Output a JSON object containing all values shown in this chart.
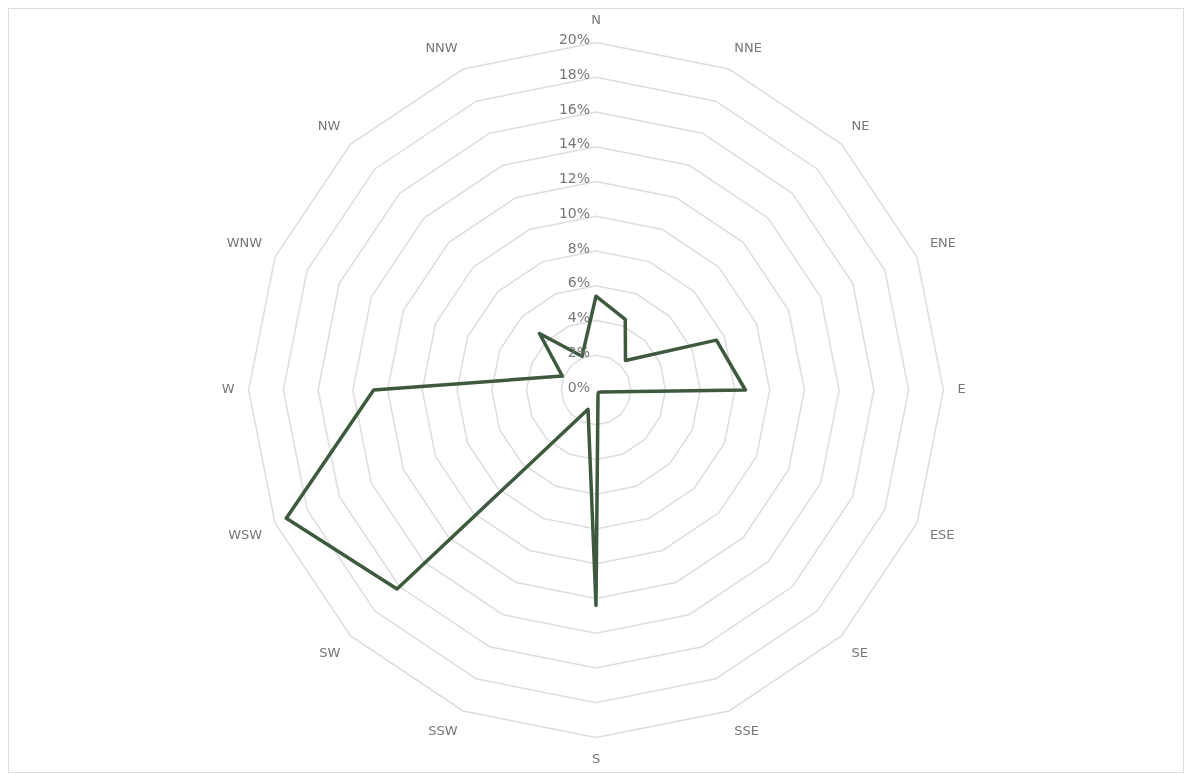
{
  "chart_data": {
    "type": "radar",
    "categories": [
      "N",
      "NNE",
      "NE",
      "ENE",
      "E",
      "ESE",
      "SE",
      "SSE",
      "S",
      "SSW",
      "SW",
      "WSW",
      "W",
      "WNW",
      "NW",
      "NNW"
    ],
    "series": [
      {
        "color": "#3d5a3f",
        "values": [
          5.4,
          4.4,
          2.4,
          7.5,
          8.6,
          0.3,
          0.2,
          0.3,
          12.4,
          1.2,
          16.2,
          19.3,
          12.8,
          2.1,
          4.6,
          2.1
        ]
      }
    ],
    "ylim": [
      0,
      20
    ],
    "yticks": [
      {
        "value": 0,
        "label": "0%"
      },
      {
        "value": 2,
        "label": "2%"
      },
      {
        "value": 4,
        "label": "4%"
      },
      {
        "value": 6,
        "label": "6%"
      },
      {
        "value": 8,
        "label": "8%"
      },
      {
        "value": 10,
        "label": "10%"
      },
      {
        "value": 12,
        "label": "12%"
      },
      {
        "value": 14,
        "label": "14%"
      },
      {
        "value": 16,
        "label": "16%"
      },
      {
        "value": 18,
        "label": "18%"
      },
      {
        "value": 20,
        "label": "20%"
      }
    ],
    "grid": true,
    "legend": false,
    "marker": "none",
    "line_style": "solid"
  }
}
